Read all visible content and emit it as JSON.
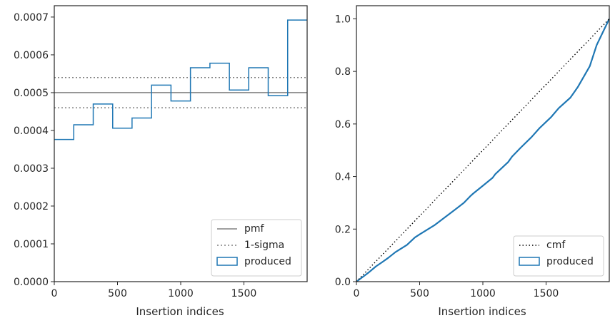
{
  "chart_data": [
    {
      "type": "step",
      "xlabel": "Insertion indices",
      "ylabel": "",
      "xlim": [
        0,
        2000
      ],
      "ylim": [
        0,
        0.00073
      ],
      "xticks": [
        0,
        500,
        1000,
        1500
      ],
      "yticks": [
        0,
        0.0001,
        0.0002,
        0.0003,
        0.0004,
        0.0005,
        0.0006,
        0.0007
      ],
      "ytick_labels": [
        "0.0000",
        "0.0001",
        "0.0002",
        "0.0003",
        "0.0004",
        "0.0005",
        "0.0006",
        "0.0007"
      ],
      "bin_edges": [
        0,
        154,
        308,
        462,
        615,
        769,
        923,
        1077,
        1231,
        1385,
        1538,
        1692,
        1846,
        2000
      ],
      "series": [
        {
          "name": "produced",
          "color": "#1f77b4",
          "values": [
            0.000376,
            0.000415,
            0.00047,
            0.000406,
            0.000433,
            0.00052,
            0.000478,
            0.000566,
            0.000578,
            0.000507,
            0.000566,
            0.000492,
            0.000692
          ]
        }
      ],
      "pmf": {
        "name": "pmf",
        "value": 0.0005,
        "color": "#808080"
      },
      "sigma": {
        "name": "1-sigma",
        "lower": 0.00046,
        "upper": 0.00054,
        "color": "#808080"
      },
      "legend": {
        "position": "lower-right",
        "entries": [
          "pmf",
          "1-sigma",
          "produced"
        ]
      }
    },
    {
      "type": "line",
      "xlabel": "Insertion indices",
      "ylabel": "",
      "xlim": [
        0,
        2000
      ],
      "ylim": [
        0,
        1.05
      ],
      "xticks": [
        0,
        500,
        1000,
        1500
      ],
      "yticks": [
        0,
        0.2,
        0.4,
        0.6,
        0.8,
        1.0
      ],
      "ytick_labels": [
        "0.0",
        "0.2",
        "0.4",
        "0.6",
        "0.8",
        "1.0"
      ],
      "series": [
        {
          "name": "produced",
          "color": "#1f77b4",
          "x": [
            0,
            50,
            100,
            154,
            200,
            250,
            308,
            400,
            462,
            500,
            615,
            700,
            769,
            850,
            900,
            923,
            1000,
            1077,
            1100,
            1200,
            1231,
            1300,
            1385,
            1450,
            1538,
            1600,
            1692,
            1750,
            1846,
            1900,
            2000
          ],
          "y": [
            0,
            0.018,
            0.036,
            0.058,
            0.073,
            0.09,
            0.112,
            0.14,
            0.168,
            0.18,
            0.214,
            0.245,
            0.27,
            0.3,
            0.325,
            0.335,
            0.365,
            0.395,
            0.41,
            0.455,
            0.476,
            0.51,
            0.55,
            0.585,
            0.625,
            0.66,
            0.7,
            0.74,
            0.82,
            0.9,
            1.0
          ]
        },
        {
          "name": "cmf",
          "color": "#000000",
          "x": [
            0,
            2000
          ],
          "y": [
            0,
            1.0
          ]
        }
      ],
      "legend": {
        "position": "lower-right",
        "entries": [
          "cmf",
          "produced"
        ]
      }
    }
  ]
}
